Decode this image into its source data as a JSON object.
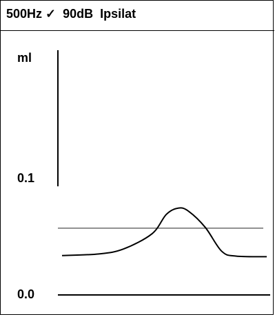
{
  "header": {
    "title": "500Hz ✓  90dB  Ipsilat"
  },
  "chart_data": {
    "type": "line",
    "title": "500Hz ✓  90dB  Ipsilat",
    "ylabel": "ml",
    "y_ticks": [
      {
        "value": 0.1,
        "label": "0.1"
      },
      {
        "value": 0.0,
        "label": "0.0"
      }
    ],
    "ylim": [
      0.0,
      0.2
    ],
    "xlim": [
      0,
      1
    ],
    "reference_line": {
      "y": 0.0575,
      "color": "#6b6b6b"
    },
    "series": [
      {
        "color": "#000000",
        "points": [
          [
            0.0,
            0.0339
          ],
          [
            0.18,
            0.0353
          ],
          [
            0.3,
            0.0395
          ],
          [
            0.44,
            0.0527
          ],
          [
            0.51,
            0.0694
          ],
          [
            0.57,
            0.0748
          ],
          [
            0.62,
            0.0718
          ],
          [
            0.7,
            0.0581
          ],
          [
            0.78,
            0.0376
          ],
          [
            0.85,
            0.0334
          ],
          [
            1.0,
            0.0329
          ]
        ]
      }
    ],
    "grid": false
  }
}
